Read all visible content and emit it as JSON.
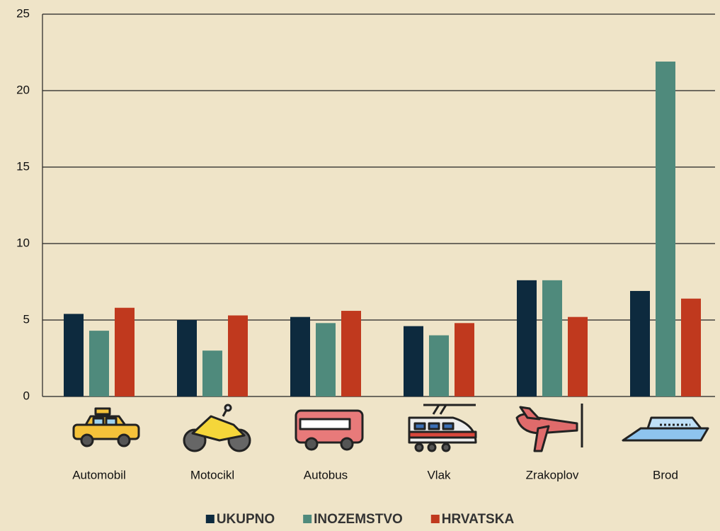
{
  "chart_data": {
    "type": "bar",
    "categories": [
      "Automobil",
      "Motocikl",
      "Autobus",
      "Vlak",
      "Zrakoplov",
      "Brod"
    ],
    "series": [
      {
        "name": "UKUPNO",
        "color": "#0d2a3e",
        "values": [
          5.4,
          5.0,
          5.2,
          4.6,
          7.6,
          6.9
        ]
      },
      {
        "name": "INOZEMSTVO",
        "color": "#4f8a7c",
        "values": [
          4.3,
          3.0,
          4.8,
          4.0,
          7.6,
          21.9
        ]
      },
      {
        "name": "HRVATSKA",
        "color": "#c0391e",
        "values": [
          5.8,
          5.3,
          5.6,
          4.8,
          5.2,
          6.4
        ]
      }
    ],
    "ylim": [
      0,
      25
    ],
    "yticks": [
      0,
      5,
      10,
      15,
      20,
      25
    ],
    "grid": true,
    "legend": "bottom"
  }
}
